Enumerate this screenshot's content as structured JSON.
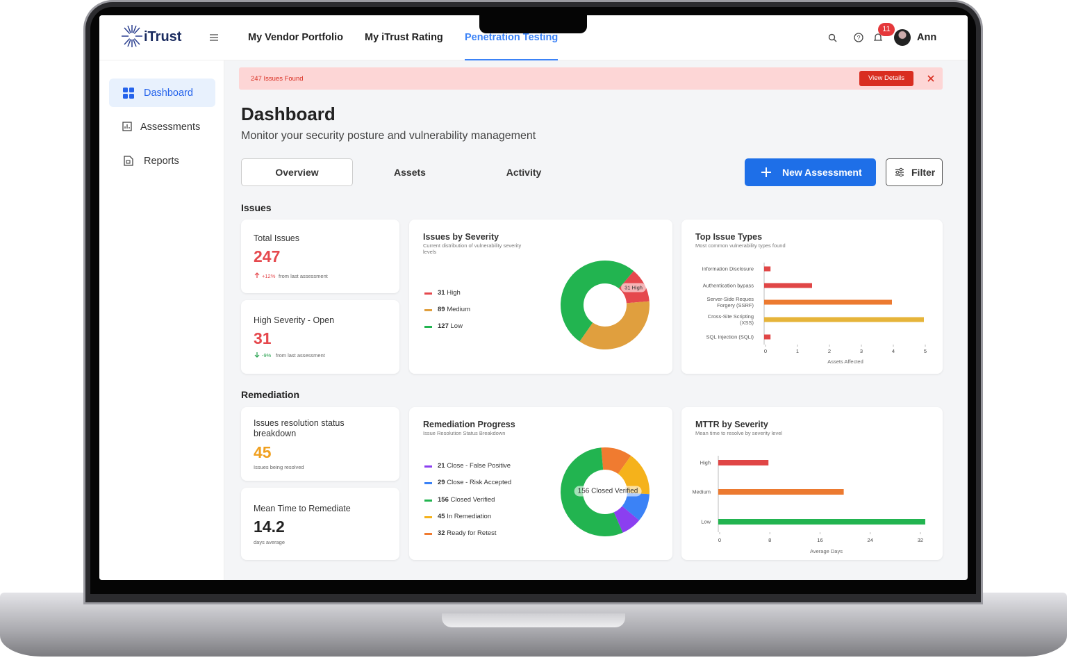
{
  "nav": {
    "logo": "iTrust",
    "items": [
      "My Vendor Portfolio",
      "My iTrust Rating",
      "Penetration Testing"
    ],
    "badge": "11",
    "user": "Ann"
  },
  "sidebar": [
    "Dashboard",
    "Assessments",
    "Reports"
  ],
  "alert": {
    "text": "247 Issues Found",
    "button": "View Details"
  },
  "header": {
    "title": "Dashboard",
    "subtitle": "Monitor your security posture and vulnerability management"
  },
  "tabs": [
    "Overview",
    "Assets",
    "Activity"
  ],
  "actions": [
    "New Assessment",
    "Filter"
  ],
  "sections": [
    "Issues",
    "Remediation"
  ],
  "stats": [
    {
      "label": "Total Issues",
      "value": 247,
      "change": "+12%",
      "note": "from last assessment"
    },
    {
      "label": "High Severity - Open",
      "value": 31,
      "change": "-9%",
      "note": "from last assessment"
    },
    {
      "label": "Issues resolution status breakdown",
      "value": 45,
      "note": "Issues being resolved"
    },
    {
      "label": "Mean Time to Remediate",
      "value": 14.2,
      "note": "days average"
    }
  ],
  "severity": {
    "type": "pie",
    "title": "Issues by Severity",
    "subtitle": "Current distribution of vulnerability severity levels",
    "series": [
      {
        "name": "High",
        "value": 31,
        "color": "#e5484d"
      },
      {
        "name": "Medium",
        "value": 89,
        "color": "#e09f3e"
      },
      {
        "name": "Low",
        "value": 127,
        "color": "#22b450"
      }
    ]
  },
  "top_issues": {
    "type": "bar",
    "title": "Top Issue Types",
    "subtitle": "Most common vulnerability types found",
    "categories": [
      "Information Disclosure",
      "Authentication bypass",
      "Server-Side Reques Forgery (SSRF)",
      "Cross-Site Scripting (XSS)",
      "SQL Injection (SQLi)"
    ],
    "values": [
      0.2,
      1.5,
      4,
      5,
      0.2
    ],
    "colors": [
      "#e04646",
      "#e04646",
      "#ec7a30",
      "#e6b43a",
      "#e04646"
    ],
    "xlim": [
      0,
      5
    ],
    "xticks": [
      0,
      1,
      2,
      3,
      4,
      5
    ],
    "xlabel": "Assets Affected"
  },
  "remediation": {
    "type": "pie",
    "title": "Remediation Progress",
    "subtitle": "Issue Resolution Status Breakdown",
    "series": [
      {
        "name": "Close - False Positive",
        "value": 21,
        "color": "#8b3ff0"
      },
      {
        "name": "Close - Risk Accepted",
        "value": 29,
        "color": "#3b82f6"
      },
      {
        "name": "Closed Verified",
        "value": 156,
        "color": "#22b450"
      },
      {
        "name": "In Remediation",
        "value": 45,
        "color": "#f5b21b"
      },
      {
        "name": "Ready for Retest",
        "value": 32,
        "color": "#f07b30"
      }
    ]
  },
  "mttr": {
    "type": "bar",
    "title": "MTTR by Severity",
    "subtitle": "Mean time to resolve by severity level",
    "categories": [
      "High",
      "Medium",
      "Low"
    ],
    "values": [
      8,
      20,
      33
    ],
    "colors": [
      "#e04646",
      "#ec7a30",
      "#22b450"
    ],
    "xlim": [
      0,
      34
    ],
    "xticks": [
      0,
      8,
      16,
      24,
      32
    ],
    "xlabel": "Average Days"
  }
}
